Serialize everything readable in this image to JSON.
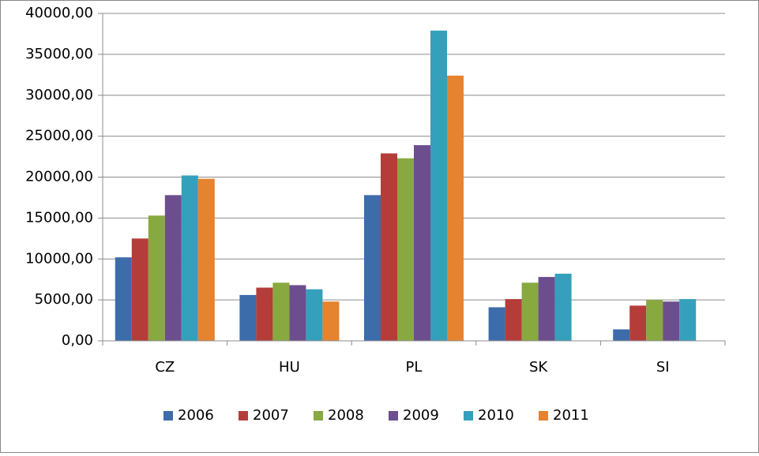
{
  "chart_data": {
    "type": "bar",
    "categories": [
      "CZ",
      "HU",
      "PL",
      "SK",
      "SI"
    ],
    "series": [
      {
        "name": "2006",
        "color": "#3d6cab",
        "values": [
          10200,
          5600,
          17800,
          4100,
          1400
        ]
      },
      {
        "name": "2007",
        "color": "#b43d3a",
        "values": [
          12500,
          6500,
          22900,
          5100,
          4300
        ]
      },
      {
        "name": "2008",
        "color": "#87a93f",
        "values": [
          15300,
          7100,
          22300,
          7100,
          5000
        ]
      },
      {
        "name": "2009",
        "color": "#6c4e8e",
        "values": [
          17800,
          6800,
          23900,
          7800,
          4800
        ]
      },
      {
        "name": "2010",
        "color": "#35a0bb",
        "values": [
          20200,
          6300,
          37900,
          8200,
          5100
        ]
      },
      {
        "name": "2011",
        "color": "#e5832f",
        "values": [
          19800,
          4800,
          32400,
          null,
          null
        ]
      }
    ],
    "ylim": [
      0,
      40000
    ],
    "yticks": [
      {
        "value": 0,
        "label": "0,00"
      },
      {
        "value": 5000,
        "label": "5000,00"
      },
      {
        "value": 10000,
        "label": "10000,00"
      },
      {
        "value": 15000,
        "label": "15000,00"
      },
      {
        "value": 20000,
        "label": "20000,00"
      },
      {
        "value": 25000,
        "label": "25000,00"
      },
      {
        "value": 30000,
        "label": "30000,00"
      },
      {
        "value": 35000,
        "label": "35000,00"
      },
      {
        "value": 40000,
        "label": "40000,00"
      }
    ],
    "grid": true,
    "legend": "bottom"
  }
}
